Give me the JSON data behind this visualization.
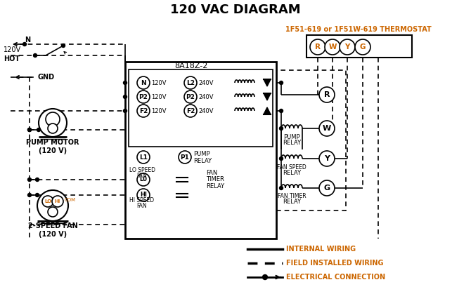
{
  "title": "120 VAC DIAGRAM",
  "title_fontsize": 13,
  "thermostat_label": "1F51-619 or 1F51W-619 THERMOSTAT",
  "control_box_label": "8A18Z-2",
  "pump_motor_label": "PUMP MOTOR\n(120 V)",
  "fan_label": "2-SPEED FAN\n(120 V)",
  "legend_internal": "INTERNAL WIRING",
  "legend_field": "FIELD INSTALLED WIRING",
  "legend_elec": "ELECTRICAL CONNECTION",
  "orange": "#cc6600",
  "black": "#000000",
  "bg": "#ffffff",
  "fig_w": 6.7,
  "fig_h": 4.19,
  "dpi": 100
}
